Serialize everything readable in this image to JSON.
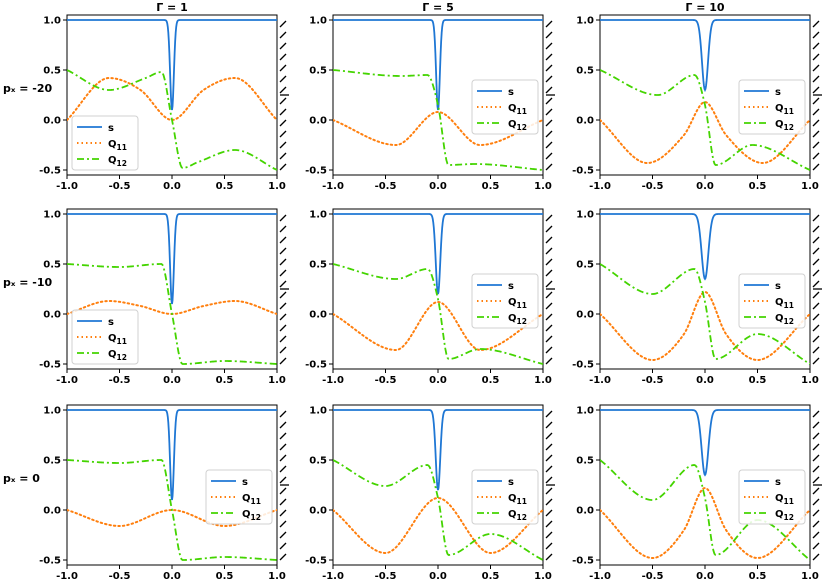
{
  "figure": {
    "column_titles": [
      "Γ = 1",
      "Γ = 5",
      "Γ = 10"
    ],
    "row_labels": [
      "pₓ = -20",
      "pₓ = -10",
      "pₓ = 0"
    ],
    "x_ticks": [
      "-1.0",
      "-0.5",
      "0.0",
      "0.5",
      "1.0"
    ],
    "y_ticks": [
      "-0.5",
      "0.0",
      "0.5",
      "1.0"
    ],
    "colors": {
      "s": "#1f77d4",
      "Q11": "#ff7f0e",
      "Q12": "#44d400"
    }
  },
  "chart_data": [
    {
      "type": "line",
      "row": 0,
      "col": 0,
      "title": "Γ = 1",
      "row_label": "pₓ = -20",
      "xlim": [
        -1,
        1
      ],
      "ylim": [
        -0.55,
        1.05
      ],
      "legend": "lower-left",
      "series": [
        {
          "name": "s",
          "legend_label": "s",
          "legend_sub": ""
        },
        {
          "name": "Q11",
          "legend_label": "Q",
          "legend_sub": "11"
        },
        {
          "name": "Q12",
          "legend_label": "Q",
          "legend_sub": "12"
        }
      ],
      "s_params": {
        "min": 0.1,
        "width": 0.025
      },
      "q11_points": [
        [
          -1,
          0.0
        ],
        [
          -0.6,
          0.42
        ],
        [
          -0.3,
          0.3
        ],
        [
          0,
          0.0
        ],
        [
          0.3,
          0.3
        ],
        [
          0.6,
          0.42
        ],
        [
          1,
          0.0
        ]
      ],
      "q12_points": [
        [
          -1,
          0.5
        ],
        [
          -0.6,
          0.3
        ],
        [
          -0.25,
          0.42
        ],
        [
          -0.1,
          0.48
        ],
        [
          0,
          0.0
        ],
        [
          0.1,
          -0.48
        ],
        [
          0.25,
          -0.42
        ],
        [
          0.6,
          -0.3
        ],
        [
          1,
          -0.5
        ]
      ]
    },
    {
      "type": "line",
      "row": 0,
      "col": 1,
      "title": "Γ = 5",
      "row_label": "pₓ = -20",
      "xlim": [
        -1,
        1
      ],
      "ylim": [
        -0.55,
        1.05
      ],
      "legend": "center-right",
      "series": [
        {
          "name": "s",
          "legend_label": "s",
          "legend_sub": ""
        },
        {
          "name": "Q11",
          "legend_label": "Q",
          "legend_sub": "11"
        },
        {
          "name": "Q12",
          "legend_label": "Q",
          "legend_sub": "12"
        }
      ],
      "s_params": {
        "min": 0.1,
        "width": 0.025
      },
      "q11_points": [
        [
          -1,
          0.0
        ],
        [
          -0.4,
          -0.25
        ],
        [
          0,
          0.08
        ],
        [
          0.4,
          -0.25
        ],
        [
          1,
          0.0
        ]
      ],
      "q12_points": [
        [
          -1,
          0.5
        ],
        [
          -0.35,
          0.44
        ],
        [
          -0.1,
          0.45
        ],
        [
          0,
          0.15
        ],
        [
          0.1,
          -0.45
        ],
        [
          0.35,
          -0.44
        ],
        [
          1,
          -0.5
        ]
      ]
    },
    {
      "type": "line",
      "row": 0,
      "col": 2,
      "title": "Γ = 10",
      "row_label": "pₓ = -20",
      "xlim": [
        -1,
        1
      ],
      "ylim": [
        -0.55,
        1.05
      ],
      "legend": "center-right",
      "series": [
        {
          "name": "s",
          "legend_label": "s",
          "legend_sub": ""
        },
        {
          "name": "Q11",
          "legend_label": "Q",
          "legend_sub": "11"
        },
        {
          "name": "Q12",
          "legend_label": "Q",
          "legend_sub": "12"
        }
      ],
      "s_params": {
        "min": 0.3,
        "width": 0.04
      },
      "q11_points": [
        [
          -1,
          0.0
        ],
        [
          -0.55,
          -0.43
        ],
        [
          -0.2,
          -0.15
        ],
        [
          0,
          0.18
        ],
        [
          0.2,
          -0.15
        ],
        [
          0.55,
          -0.43
        ],
        [
          1,
          0.0
        ]
      ],
      "q12_points": [
        [
          -1,
          0.5
        ],
        [
          -0.45,
          0.25
        ],
        [
          -0.1,
          0.45
        ],
        [
          0,
          0.15
        ],
        [
          0.1,
          -0.45
        ],
        [
          0.45,
          -0.25
        ],
        [
          1,
          -0.5
        ]
      ]
    },
    {
      "type": "line",
      "row": 1,
      "col": 0,
      "title": "Γ = 1",
      "row_label": "pₓ = -10",
      "xlim": [
        -1,
        1
      ],
      "ylim": [
        -0.55,
        1.05
      ],
      "legend": "lower-left",
      "series": [
        {
          "name": "s",
          "legend_label": "s",
          "legend_sub": ""
        },
        {
          "name": "Q11",
          "legend_label": "Q",
          "legend_sub": "11"
        },
        {
          "name": "Q12",
          "legend_label": "Q",
          "legend_sub": "12"
        }
      ],
      "s_params": {
        "min": 0.1,
        "width": 0.025
      },
      "q11_points": [
        [
          -1,
          0.0
        ],
        [
          -0.6,
          0.13
        ],
        [
          -0.3,
          0.08
        ],
        [
          0,
          0.0
        ],
        [
          0.3,
          0.08
        ],
        [
          0.6,
          0.13
        ],
        [
          1,
          0.0
        ]
      ],
      "q12_points": [
        [
          -1,
          0.5
        ],
        [
          -0.5,
          0.47
        ],
        [
          -0.1,
          0.5
        ],
        [
          0,
          0.0
        ],
        [
          0.1,
          -0.5
        ],
        [
          0.5,
          -0.47
        ],
        [
          1,
          -0.5
        ]
      ]
    },
    {
      "type": "line",
      "row": 1,
      "col": 1,
      "title": "Γ = 5",
      "row_label": "pₓ = -10",
      "xlim": [
        -1,
        1
      ],
      "ylim": [
        -0.55,
        1.05
      ],
      "legend": "center-right",
      "series": [
        {
          "name": "s",
          "legend_label": "s",
          "legend_sub": ""
        },
        {
          "name": "Q11",
          "legend_label": "Q",
          "legend_sub": "11"
        },
        {
          "name": "Q12",
          "legend_label": "Q",
          "legend_sub": "12"
        }
      ],
      "s_params": {
        "min": 0.2,
        "width": 0.03
      },
      "q11_points": [
        [
          -1,
          0.0
        ],
        [
          -0.4,
          -0.36
        ],
        [
          0,
          0.12
        ],
        [
          0.4,
          -0.36
        ],
        [
          1,
          0.0
        ]
      ],
      "q12_points": [
        [
          -1,
          0.5
        ],
        [
          -0.4,
          0.35
        ],
        [
          -0.1,
          0.45
        ],
        [
          0,
          0.15
        ],
        [
          0.1,
          -0.45
        ],
        [
          0.4,
          -0.35
        ],
        [
          1,
          -0.5
        ]
      ]
    },
    {
      "type": "line",
      "row": 1,
      "col": 2,
      "title": "Γ = 10",
      "row_label": "pₓ = -10",
      "xlim": [
        -1,
        1
      ],
      "ylim": [
        -0.55,
        1.05
      ],
      "legend": "center-right",
      "series": [
        {
          "name": "s",
          "legend_label": "s",
          "legend_sub": ""
        },
        {
          "name": "Q11",
          "legend_label": "Q",
          "legend_sub": "11"
        },
        {
          "name": "Q12",
          "legend_label": "Q",
          "legend_sub": "12"
        }
      ],
      "s_params": {
        "min": 0.35,
        "width": 0.045
      },
      "q11_points": [
        [
          -1,
          0.0
        ],
        [
          -0.5,
          -0.46
        ],
        [
          -0.2,
          -0.2
        ],
        [
          0,
          0.22
        ],
        [
          0.2,
          -0.2
        ],
        [
          0.5,
          -0.46
        ],
        [
          1,
          0.0
        ]
      ],
      "q12_points": [
        [
          -1,
          0.5
        ],
        [
          -0.5,
          0.2
        ],
        [
          -0.1,
          0.45
        ],
        [
          0,
          0.12
        ],
        [
          0.1,
          -0.45
        ],
        [
          0.5,
          -0.2
        ],
        [
          1,
          -0.5
        ]
      ]
    },
    {
      "type": "line",
      "row": 2,
      "col": 0,
      "title": "Γ = 1",
      "row_label": "pₓ = 0",
      "xlim": [
        -1,
        1
      ],
      "ylim": [
        -0.55,
        1.05
      ],
      "legend": "center-right",
      "series": [
        {
          "name": "s",
          "legend_label": "s",
          "legend_sub": ""
        },
        {
          "name": "Q11",
          "legend_label": "Q",
          "legend_sub": "11"
        },
        {
          "name": "Q12",
          "legend_label": "Q",
          "legend_sub": "12"
        }
      ],
      "s_params": {
        "min": 0.1,
        "width": 0.025
      },
      "q11_points": [
        [
          -1,
          0.0
        ],
        [
          -0.5,
          -0.16
        ],
        [
          0,
          0.0
        ],
        [
          0.5,
          -0.16
        ],
        [
          1,
          0.0
        ]
      ],
      "q12_points": [
        [
          -1,
          0.5
        ],
        [
          -0.5,
          0.47
        ],
        [
          -0.1,
          0.5
        ],
        [
          0,
          0.0
        ],
        [
          0.1,
          -0.5
        ],
        [
          0.5,
          -0.47
        ],
        [
          1,
          -0.5
        ]
      ]
    },
    {
      "type": "line",
      "row": 2,
      "col": 1,
      "title": "Γ = 5",
      "row_label": "pₓ = 0",
      "xlim": [
        -1,
        1
      ],
      "ylim": [
        -0.55,
        1.05
      ],
      "legend": "center-right",
      "series": [
        {
          "name": "s",
          "legend_label": "s",
          "legend_sub": ""
        },
        {
          "name": "Q11",
          "legend_label": "Q",
          "legend_sub": "11"
        },
        {
          "name": "Q12",
          "legend_label": "Q",
          "legend_sub": "12"
        }
      ],
      "s_params": {
        "min": 0.2,
        "width": 0.03
      },
      "q11_points": [
        [
          -1,
          0.0
        ],
        [
          -0.5,
          -0.43
        ],
        [
          0,
          0.12
        ],
        [
          0.5,
          -0.43
        ],
        [
          1,
          0.0
        ]
      ],
      "q12_points": [
        [
          -1,
          0.5
        ],
        [
          -0.5,
          0.24
        ],
        [
          -0.1,
          0.45
        ],
        [
          0,
          0.12
        ],
        [
          0.1,
          -0.45
        ],
        [
          0.5,
          -0.24
        ],
        [
          1,
          -0.5
        ]
      ]
    },
    {
      "type": "line",
      "row": 2,
      "col": 2,
      "title": "Γ = 10",
      "row_label": "pₓ = 0",
      "xlim": [
        -1,
        1
      ],
      "ylim": [
        -0.55,
        1.05
      ],
      "legend": "center-right",
      "series": [
        {
          "name": "s",
          "legend_label": "s",
          "legend_sub": ""
        },
        {
          "name": "Q11",
          "legend_label": "Q",
          "legend_sub": "11"
        },
        {
          "name": "Q12",
          "legend_label": "Q",
          "legend_sub": "12"
        }
      ],
      "s_params": {
        "min": 0.35,
        "width": 0.045
      },
      "q11_points": [
        [
          -1,
          0.0
        ],
        [
          -0.5,
          -0.48
        ],
        [
          -0.2,
          -0.2
        ],
        [
          0,
          0.22
        ],
        [
          0.2,
          -0.2
        ],
        [
          0.5,
          -0.48
        ],
        [
          1,
          0.0
        ]
      ],
      "q12_points": [
        [
          -1,
          0.5
        ],
        [
          -0.5,
          0.1
        ],
        [
          -0.1,
          0.45
        ],
        [
          0,
          0.12
        ],
        [
          0.1,
          -0.45
        ],
        [
          0.5,
          -0.1
        ],
        [
          1,
          -0.5
        ]
      ]
    }
  ]
}
